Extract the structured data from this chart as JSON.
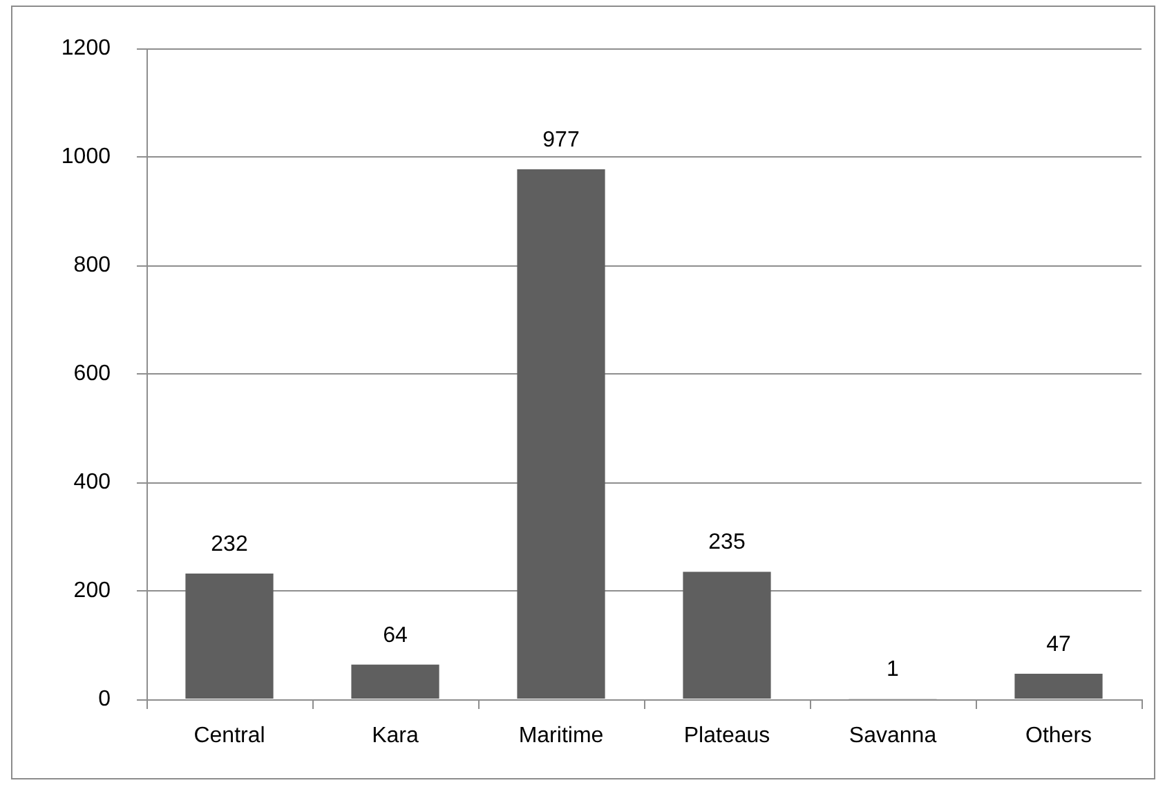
{
  "chart_data": {
    "type": "bar",
    "categories": [
      "Central",
      "Kara",
      "Maritime",
      "Plateaus",
      "Savanna",
      "Others"
    ],
    "values": [
      232,
      64,
      977,
      235,
      1,
      47
    ],
    "color": "#5f5f5f",
    "ylim": [
      0,
      1200
    ],
    "yticks": [
      0,
      200,
      400,
      600,
      800,
      1000,
      1200
    ],
    "grid": "y",
    "legend": false,
    "data_labels": true
  }
}
